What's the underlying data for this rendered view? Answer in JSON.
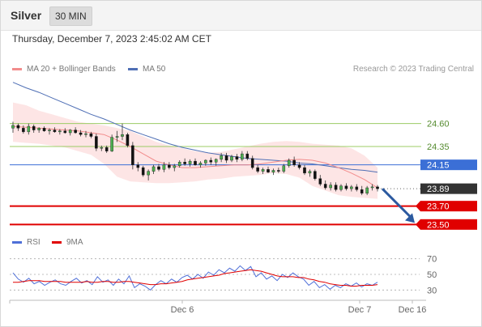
{
  "header": {
    "title": "Silver",
    "interval": "30 MIN"
  },
  "datetime": "Thursday, December 7, 2023 2:45:02 AM CET",
  "legend": {
    "ma20": "MA 20 + Bollinger Bands",
    "ma50": "MA 50",
    "credit": "Research © 2023 Trading Central"
  },
  "rsi_legend": {
    "rsi": "RSI",
    "ma": "9MA"
  },
  "colors": {
    "ma20": "#f28c8c",
    "ma50": "#4f6fb5",
    "band": "#fde0e0",
    "green_line": "#9ccc65",
    "blue_line": "#3b6fd6",
    "red_line": "#e00000",
    "up_candle": "#4caf50",
    "down_candle": "#111111",
    "arrow": "#2c5aa0"
  },
  "chart_data": {
    "type": "line",
    "price_range": [
      23.45,
      24.8
    ],
    "levels": [
      {
        "label": "24.60",
        "value": 24.6,
        "kind": "resistance-green",
        "color": "#9ccc65",
        "text_color": "#558b2f"
      },
      {
        "label": "24.35",
        "value": 24.35,
        "kind": "resistance-green",
        "color": "#9ccc65",
        "text_color": "#558b2f"
      },
      {
        "label": "24.15",
        "value": 24.15,
        "kind": "pivot",
        "color": "#3b6fd6",
        "text_color": "#ffffff",
        "box": "#3b6fd6"
      },
      {
        "label": "23.89",
        "value": 23.89,
        "kind": "last",
        "color": "#666666",
        "text_color": "#ffffff",
        "box": "#333333",
        "dotted": true
      },
      {
        "label": "23.70",
        "value": 23.7,
        "kind": "support",
        "color": "#e00000",
        "text_color": "#ffffff",
        "box": "#e00000"
      },
      {
        "label": "23.50",
        "value": 23.5,
        "kind": "support",
        "color": "#e00000",
        "text_color": "#ffffff",
        "box": "#e00000"
      }
    ],
    "x_ticks": [
      "Dec 6",
      "Dec 7",
      "Dec 16"
    ],
    "ma50": [
      25.05,
      24.99,
      24.94,
      24.88,
      24.82,
      24.76,
      24.7,
      24.65,
      24.59,
      24.53,
      24.48,
      24.43,
      24.38,
      24.34,
      24.31,
      24.28,
      24.26,
      24.24,
      24.22,
      24.21,
      24.2,
      24.19,
      24.17,
      24.16,
      24.14,
      24.12,
      24.1,
      24.09,
      24.07
    ],
    "ma20": [
      24.57,
      24.56,
      24.55,
      24.54,
      24.53,
      24.52,
      24.5,
      24.48,
      24.42,
      24.35,
      24.27,
      24.19,
      24.15,
      24.12,
      24.12,
      24.13,
      24.14,
      24.15,
      24.15,
      24.16,
      24.18,
      24.2,
      24.21,
      24.2,
      24.17,
      24.12,
      24.06,
      23.99,
      23.9
    ],
    "bollinger_upper": [
      24.83,
      24.8,
      24.74,
      24.7,
      24.66,
      24.62,
      24.6,
      24.58,
      24.55,
      24.52,
      24.46,
      24.4,
      24.36,
      24.33,
      24.3,
      24.28,
      24.29,
      24.32,
      24.35,
      24.38,
      24.4,
      24.41,
      24.4,
      24.38,
      24.37,
      24.36,
      24.33,
      24.25,
      24.12
    ],
    "bollinger_lower": [
      24.4,
      24.39,
      24.38,
      24.36,
      24.34,
      24.3,
      24.26,
      24.16,
      24.02,
      23.97,
      23.96,
      23.95,
      23.95,
      23.96,
      23.97,
      23.99,
      24.0,
      24.02,
      24.03,
      24.04,
      24.06,
      24.05,
      24.01,
      23.92,
      23.87,
      23.82,
      23.8,
      23.79,
      23.78
    ],
    "candles": [
      [
        24.55,
        24.62,
        24.5,
        24.58
      ],
      [
        24.58,
        24.6,
        24.52,
        24.55
      ],
      [
        24.55,
        24.58,
        24.49,
        24.51
      ],
      [
        24.51,
        24.6,
        24.48,
        24.57
      ],
      [
        24.57,
        24.59,
        24.5,
        24.53
      ],
      [
        24.53,
        24.56,
        24.5,
        24.55
      ],
      [
        24.55,
        24.57,
        24.51,
        24.52
      ],
      [
        24.52,
        24.55,
        24.48,
        24.53
      ],
      [
        24.53,
        24.56,
        24.5,
        24.51
      ],
      [
        24.51,
        24.54,
        24.48,
        24.52
      ],
      [
        24.52,
        24.55,
        24.49,
        24.5
      ],
      [
        24.5,
        24.54,
        24.47,
        24.53
      ],
      [
        24.53,
        24.56,
        24.49,
        24.5
      ],
      [
        24.5,
        24.53,
        24.46,
        24.48
      ],
      [
        24.48,
        24.52,
        24.45,
        24.49
      ],
      [
        24.49,
        24.51,
        24.44,
        24.46
      ],
      [
        24.46,
        24.49,
        24.3,
        24.33
      ],
      [
        24.33,
        24.36,
        24.3,
        24.34
      ],
      [
        24.34,
        24.36,
        24.28,
        24.3
      ],
      [
        24.3,
        24.48,
        24.29,
        24.45
      ],
      [
        24.45,
        24.52,
        24.4,
        24.46
      ],
      [
        24.46,
        24.6,
        24.42,
        24.48
      ],
      [
        24.48,
        24.5,
        24.34,
        24.36
      ],
      [
        24.36,
        24.4,
        24.1,
        24.15
      ],
      [
        24.15,
        24.18,
        24.08,
        24.12
      ],
      [
        24.12,
        24.14,
        24.02,
        24.04
      ],
      [
        24.04,
        24.1,
        23.98,
        24.08
      ],
      [
        24.08,
        24.15,
        24.05,
        24.13
      ],
      [
        24.13,
        24.16,
        24.08,
        24.1
      ],
      [
        24.1,
        24.18,
        24.07,
        24.15
      ],
      [
        24.15,
        24.18,
        24.1,
        24.12
      ],
      [
        24.12,
        24.16,
        24.08,
        24.14
      ],
      [
        24.14,
        24.2,
        24.12,
        24.18
      ],
      [
        24.18,
        24.22,
        24.14,
        24.16
      ],
      [
        24.16,
        24.21,
        24.13,
        24.19
      ],
      [
        24.19,
        24.22,
        24.14,
        24.15
      ],
      [
        24.15,
        24.19,
        24.12,
        24.17
      ],
      [
        24.17,
        24.21,
        24.14,
        24.2
      ],
      [
        24.2,
        24.23,
        24.15,
        24.18
      ],
      [
        24.18,
        24.22,
        24.14,
        24.21
      ],
      [
        24.21,
        24.28,
        24.18,
        24.25
      ],
      [
        24.25,
        24.28,
        24.17,
        24.2
      ],
      [
        24.2,
        24.26,
        24.18,
        24.24
      ],
      [
        24.24,
        24.27,
        24.18,
        24.21
      ],
      [
        24.21,
        24.3,
        24.19,
        24.27
      ],
      [
        24.27,
        24.3,
        24.2,
        24.22
      ],
      [
        24.22,
        24.25,
        24.1,
        24.12
      ],
      [
        24.12,
        24.15,
        24.06,
        24.08
      ],
      [
        24.08,
        24.12,
        24.05,
        24.1
      ],
      [
        24.1,
        24.13,
        24.06,
        24.07
      ],
      [
        24.07,
        24.11,
        24.04,
        24.09
      ],
      [
        24.09,
        24.12,
        24.06,
        24.08
      ],
      [
        24.08,
        24.16,
        24.06,
        24.14
      ],
      [
        24.14,
        24.22,
        24.12,
        24.2
      ],
      [
        24.2,
        24.24,
        24.13,
        24.15
      ],
      [
        24.15,
        24.18,
        24.1,
        24.12
      ],
      [
        24.12,
        24.15,
        24.04,
        24.06
      ],
      [
        24.06,
        24.1,
        24.02,
        24.08
      ],
      [
        24.08,
        24.1,
        23.98,
        24.0
      ],
      [
        24.0,
        24.04,
        23.92,
        23.94
      ],
      [
        23.94,
        23.98,
        23.88,
        23.9
      ],
      [
        23.9,
        23.96,
        23.87,
        23.93
      ],
      [
        23.93,
        23.96,
        23.86,
        23.88
      ],
      [
        23.88,
        23.94,
        23.86,
        23.92
      ],
      [
        23.92,
        23.95,
        23.87,
        23.89
      ],
      [
        23.89,
        23.93,
        23.86,
        23.91
      ],
      [
        23.91,
        23.94,
        23.86,
        23.88
      ],
      [
        23.88,
        23.92,
        23.82,
        23.84
      ],
      [
        23.84,
        23.92,
        23.82,
        23.9
      ],
      [
        23.9,
        23.94,
        23.87,
        23.91
      ],
      [
        23.91,
        23.93,
        23.86,
        23.89
      ]
    ],
    "forecast_arrow": {
      "from": 23.89,
      "to": 23.5
    },
    "rsi": {
      "levels": [
        70,
        50,
        30
      ],
      "range": [
        20,
        80
      ],
      "rsi": [
        52,
        44,
        40,
        45,
        38,
        41,
        36,
        40,
        43,
        38,
        36,
        41,
        45,
        39,
        42,
        37,
        47,
        40,
        43,
        36,
        44,
        38,
        48,
        33,
        38,
        35,
        30,
        37,
        42,
        38,
        44,
        40,
        46,
        49,
        44,
        50,
        45,
        53,
        49,
        56,
        52,
        58,
        54,
        61,
        55,
        60,
        47,
        52,
        44,
        48,
        42,
        50,
        46,
        52,
        47,
        44,
        36,
        41,
        33,
        37,
        31,
        36,
        33,
        38,
        35,
        39,
        34,
        38,
        36,
        40
      ],
      "ma9": [
        40,
        40,
        41,
        42,
        42,
        42,
        41,
        41,
        41,
        41,
        40,
        40,
        40,
        40,
        41,
        40,
        40,
        41,
        41,
        40,
        40,
        41,
        41,
        40,
        39,
        38,
        37,
        37,
        38,
        38,
        39,
        40,
        41,
        43,
        44,
        45,
        46,
        47,
        48,
        49,
        51,
        52,
        53,
        54,
        55,
        56,
        55,
        54,
        52,
        50,
        48,
        47,
        47,
        47,
        46,
        46,
        44,
        43,
        41,
        40,
        38,
        37,
        36,
        36,
        35,
        35,
        36,
        36,
        36,
        37
      ]
    }
  }
}
